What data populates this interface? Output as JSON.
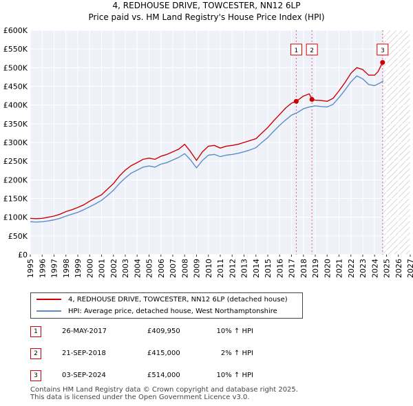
{
  "chart_data": {
    "type": "line",
    "title": "4, REDHOUSE DRIVE, TOWCESTER, NN12 6LP",
    "subtitle": "Price paid vs. HM Land Registry's House Price Index (HPI)",
    "xlim": [
      1995,
      2027
    ],
    "ylim": [
      0,
      600000
    ],
    "x_ticks": [
      1995,
      1996,
      1997,
      1998,
      1999,
      2000,
      2001,
      2002,
      2003,
      2004,
      2005,
      2006,
      2007,
      2008,
      2009,
      2010,
      2011,
      2012,
      2013,
      2014,
      2015,
      2016,
      2017,
      2018,
      2019,
      2020,
      2021,
      2022,
      2023,
      2024,
      2025,
      2026,
      2027
    ],
    "y_ticks": [
      {
        "value": 0,
        "label": "£0"
      },
      {
        "value": 50000,
        "label": "£50K"
      },
      {
        "value": 100000,
        "label": "£100K"
      },
      {
        "value": 150000,
        "label": "£150K"
      },
      {
        "value": 200000,
        "label": "£200K"
      },
      {
        "value": 250000,
        "label": "£250K"
      },
      {
        "value": 300000,
        "label": "£300K"
      },
      {
        "value": 350000,
        "label": "£350K"
      },
      {
        "value": 400000,
        "label": "£400K"
      },
      {
        "value": 450000,
        "label": "£450K"
      },
      {
        "value": 500000,
        "label": "£500K"
      },
      {
        "value": 550000,
        "label": "£550K"
      },
      {
        "value": 600000,
        "label": "£600K"
      }
    ],
    "grid": true,
    "hatched_future_from": 2024.75,
    "series": [
      {
        "name": "4, REDHOUSE DRIVE, TOWCESTER, NN12 6LP (detached house)",
        "color": "#cc0000",
        "x": [
          1995,
          1995.5,
          1996,
          1996.5,
          1997,
          1997.5,
          1998,
          1998.5,
          1999,
          1999.5,
          2000,
          2000.5,
          2001,
          2001.5,
          2002,
          2002.5,
          2003,
          2003.5,
          2004,
          2004.5,
          2005,
          2005.5,
          2006,
          2006.5,
          2007,
          2007.5,
          2008,
          2008.5,
          2009,
          2009.5,
          2010,
          2010.5,
          2011,
          2011.5,
          2012,
          2012.5,
          2013,
          2013.5,
          2014,
          2014.5,
          2015,
          2015.5,
          2016,
          2016.5,
          2017,
          2017.4,
          2017.5,
          2018,
          2018.5,
          2018.72,
          2019,
          2019.5,
          2020,
          2020.5,
          2021,
          2021.5,
          2022,
          2022.5,
          2023,
          2023.5,
          2024,
          2024.3,
          2024.67
        ],
        "values": [
          97000,
          96000,
          97000,
          100000,
          103000,
          108000,
          115000,
          120000,
          126000,
          133000,
          143000,
          152000,
          160000,
          175000,
          190000,
          210000,
          226000,
          238000,
          246000,
          255000,
          258000,
          255000,
          263000,
          268000,
          275000,
          282000,
          295000,
          275000,
          252000,
          275000,
          290000,
          292000,
          285000,
          290000,
          292000,
          295000,
          300000,
          305000,
          310000,
          325000,
          340000,
          358000,
          375000,
          392000,
          405000,
          409950,
          412000,
          424000,
          430000,
          415000,
          413000,
          412000,
          410000,
          418000,
          438000,
          460000,
          485000,
          500000,
          495000,
          480000,
          480000,
          490000,
          514000
        ]
      },
      {
        "name": "HPI: Average price, detached house, West Northamptonshire",
        "color": "#5b8cc8",
        "x": [
          1995,
          1995.5,
          1996,
          1996.5,
          1997,
          1997.5,
          1998,
          1998.5,
          1999,
          1999.5,
          2000,
          2000.5,
          2001,
          2001.5,
          2002,
          2002.5,
          2003,
          2003.5,
          2004,
          2004.5,
          2005,
          2005.5,
          2006,
          2006.5,
          2007,
          2007.5,
          2008,
          2008.5,
          2009,
          2009.5,
          2010,
          2010.5,
          2011,
          2011.5,
          2012,
          2012.5,
          2013,
          2013.5,
          2014,
          2014.5,
          2015,
          2015.5,
          2016,
          2016.5,
          2017,
          2017.5,
          2018,
          2018.5,
          2019,
          2019.5,
          2020,
          2020.5,
          2021,
          2021.5,
          2022,
          2022.5,
          2023,
          2023.5,
          2024,
          2024.5,
          2024.75
        ],
        "values": [
          88000,
          87000,
          88000,
          90000,
          93000,
          97000,
          103000,
          108000,
          113000,
          120000,
          128000,
          136000,
          145000,
          158000,
          172000,
          190000,
          205000,
          218000,
          226000,
          234000,
          237000,
          234000,
          242000,
          246000,
          253000,
          260000,
          270000,
          253000,
          232000,
          252000,
          266000,
          268000,
          262000,
          266000,
          268000,
          271000,
          275000,
          280000,
          286000,
          300000,
          313000,
          330000,
          346000,
          360000,
          373000,
          380000,
          390000,
          395000,
          398000,
          396000,
          395000,
          402000,
          420000,
          440000,
          462000,
          478000,
          470000,
          455000,
          452000,
          460000,
          465000
        ]
      }
    ],
    "sales": [
      {
        "id": "1",
        "x": 2017.4,
        "value": 409950
      },
      {
        "id": "2",
        "x": 2018.72,
        "value": 415000
      },
      {
        "id": "3",
        "x": 2024.67,
        "value": 514000
      }
    ]
  },
  "legend": {
    "property_label": "4, REDHOUSE DRIVE, TOWCESTER, NN12 6LP (detached house)",
    "hpi_label": "HPI: Average price, detached house, West Northamptonshire"
  },
  "transactions": [
    {
      "id": "1",
      "date": "26-MAY-2017",
      "price": "£409,950",
      "hpi": "10% ↑ HPI"
    },
    {
      "id": "2",
      "date": "21-SEP-2018",
      "price": "£415,000",
      "hpi": "2% ↑ HPI"
    },
    {
      "id": "3",
      "date": "03-SEP-2024",
      "price": "£514,000",
      "hpi": "10% ↑ HPI"
    }
  ],
  "footer": {
    "line1": "Contains HM Land Registry data © Crown copyright and database right 2025.",
    "line2": "This data is licensed under the Open Government Licence v3.0."
  }
}
